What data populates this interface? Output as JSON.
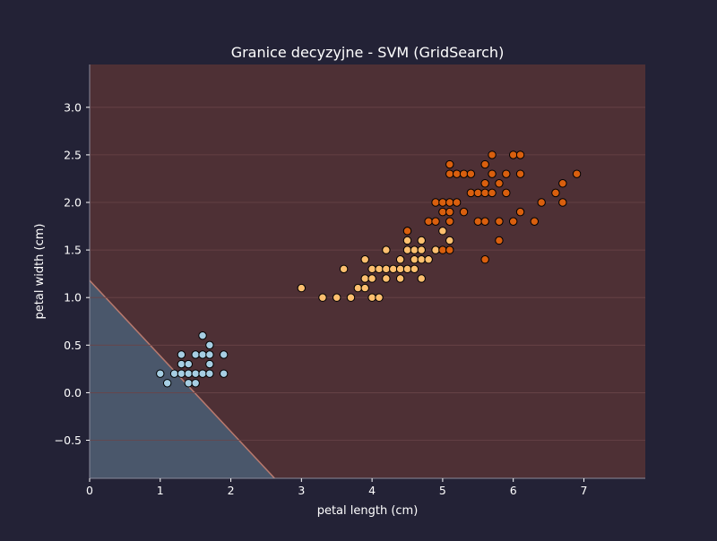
{
  "chart_data": {
    "type": "scatter",
    "title": "Granice decyzyjne - SVM (GridSearch)",
    "xlabel": "petal length (cm)",
    "ylabel": "petal width (cm)",
    "xlim": [
      0,
      7.87
    ],
    "ylim": [
      -0.9,
      3.45
    ],
    "xticks": [
      0,
      1,
      2,
      3,
      4,
      5,
      6,
      7
    ],
    "yticks": [
      -0.5,
      0.0,
      0.5,
      1.0,
      1.5,
      2.0,
      2.5,
      3.0
    ],
    "ytick_labels": [
      "−0.5",
      "0.0",
      "0.5",
      "1.0",
      "1.5",
      "2.0",
      "2.5",
      "3.0"
    ],
    "grid": true,
    "colors": {
      "background": "#232236",
      "plot_region_upper": "#4e3035",
      "plot_region_lower": "#4a576b",
      "boundary": "#b97a6e",
      "grid": "#6a4448",
      "axis": "#8a8a9a",
      "text": "#ffffff",
      "marker_edge": "#000000"
    },
    "decision_boundary": {
      "description": "linear boundary separating lower-left region",
      "points": [
        [
          0,
          1.18
        ],
        [
          2.62,
          -0.9
        ]
      ]
    },
    "series": [
      {
        "color": "#a6cee3",
        "points": [
          [
            1.0,
            0.2
          ],
          [
            1.1,
            0.1
          ],
          [
            1.2,
            0.2
          ],
          [
            1.3,
            0.2
          ],
          [
            1.3,
            0.3
          ],
          [
            1.3,
            0.4
          ],
          [
            1.4,
            0.1
          ],
          [
            1.4,
            0.2
          ],
          [
            1.4,
            0.3
          ],
          [
            1.5,
            0.1
          ],
          [
            1.5,
            0.2
          ],
          [
            1.5,
            0.4
          ],
          [
            1.6,
            0.2
          ],
          [
            1.6,
            0.4
          ],
          [
            1.6,
            0.6
          ],
          [
            1.7,
            0.2
          ],
          [
            1.7,
            0.3
          ],
          [
            1.7,
            0.4
          ],
          [
            1.7,
            0.5
          ],
          [
            1.9,
            0.2
          ],
          [
            1.9,
            0.4
          ]
        ]
      },
      {
        "color": "#fdbf6f",
        "points": [
          [
            3.0,
            1.1
          ],
          [
            3.3,
            1.0
          ],
          [
            3.5,
            1.0
          ],
          [
            3.6,
            1.3
          ],
          [
            3.7,
            1.0
          ],
          [
            3.8,
            1.1
          ],
          [
            3.9,
            1.1
          ],
          [
            3.9,
            1.2
          ],
          [
            3.9,
            1.4
          ],
          [
            4.0,
            1.0
          ],
          [
            4.0,
            1.2
          ],
          [
            4.0,
            1.3
          ],
          [
            4.1,
            1.0
          ],
          [
            4.1,
            1.3
          ],
          [
            4.2,
            1.2
          ],
          [
            4.2,
            1.3
          ],
          [
            4.2,
            1.5
          ],
          [
            4.3,
            1.3
          ],
          [
            4.4,
            1.2
          ],
          [
            4.4,
            1.3
          ],
          [
            4.4,
            1.4
          ],
          [
            4.5,
            1.3
          ],
          [
            4.5,
            1.5
          ],
          [
            4.5,
            1.6
          ],
          [
            4.5,
            1.7
          ],
          [
            4.6,
            1.3
          ],
          [
            4.6,
            1.4
          ],
          [
            4.6,
            1.5
          ],
          [
            4.7,
            1.2
          ],
          [
            4.7,
            1.4
          ],
          [
            4.7,
            1.5
          ],
          [
            4.7,
            1.6
          ],
          [
            4.8,
            1.4
          ],
          [
            4.9,
            1.5
          ],
          [
            5.0,
            1.7
          ],
          [
            5.1,
            1.6
          ]
        ]
      },
      {
        "color": "#d95f0e",
        "points": [
          [
            4.5,
            1.7
          ],
          [
            4.8,
            1.8
          ],
          [
            4.9,
            1.8
          ],
          [
            4.9,
            2.0
          ],
          [
            5.0,
            1.5
          ],
          [
            5.0,
            1.9
          ],
          [
            5.0,
            2.0
          ],
          [
            5.1,
            1.5
          ],
          [
            5.1,
            1.8
          ],
          [
            5.1,
            1.9
          ],
          [
            5.1,
            2.0
          ],
          [
            5.1,
            2.3
          ],
          [
            5.1,
            2.4
          ],
          [
            5.2,
            2.0
          ],
          [
            5.2,
            2.3
          ],
          [
            5.3,
            1.9
          ],
          [
            5.3,
            2.3
          ],
          [
            5.4,
            2.1
          ],
          [
            5.4,
            2.3
          ],
          [
            5.5,
            1.8
          ],
          [
            5.5,
            2.1
          ],
          [
            5.6,
            1.4
          ],
          [
            5.6,
            1.8
          ],
          [
            5.6,
            2.1
          ],
          [
            5.6,
            2.2
          ],
          [
            5.6,
            2.4
          ],
          [
            5.7,
            2.1
          ],
          [
            5.7,
            2.3
          ],
          [
            5.7,
            2.5
          ],
          [
            5.8,
            1.6
          ],
          [
            5.8,
            1.8
          ],
          [
            5.8,
            2.2
          ],
          [
            5.9,
            2.1
          ],
          [
            5.9,
            2.3
          ],
          [
            6.0,
            1.8
          ],
          [
            6.0,
            2.5
          ],
          [
            6.1,
            1.9
          ],
          [
            6.1,
            2.3
          ],
          [
            6.1,
            2.5
          ],
          [
            6.3,
            1.8
          ],
          [
            6.4,
            2.0
          ],
          [
            6.6,
            2.1
          ],
          [
            6.7,
            2.0
          ],
          [
            6.7,
            2.2
          ],
          [
            6.9,
            2.3
          ]
        ]
      }
    ]
  }
}
